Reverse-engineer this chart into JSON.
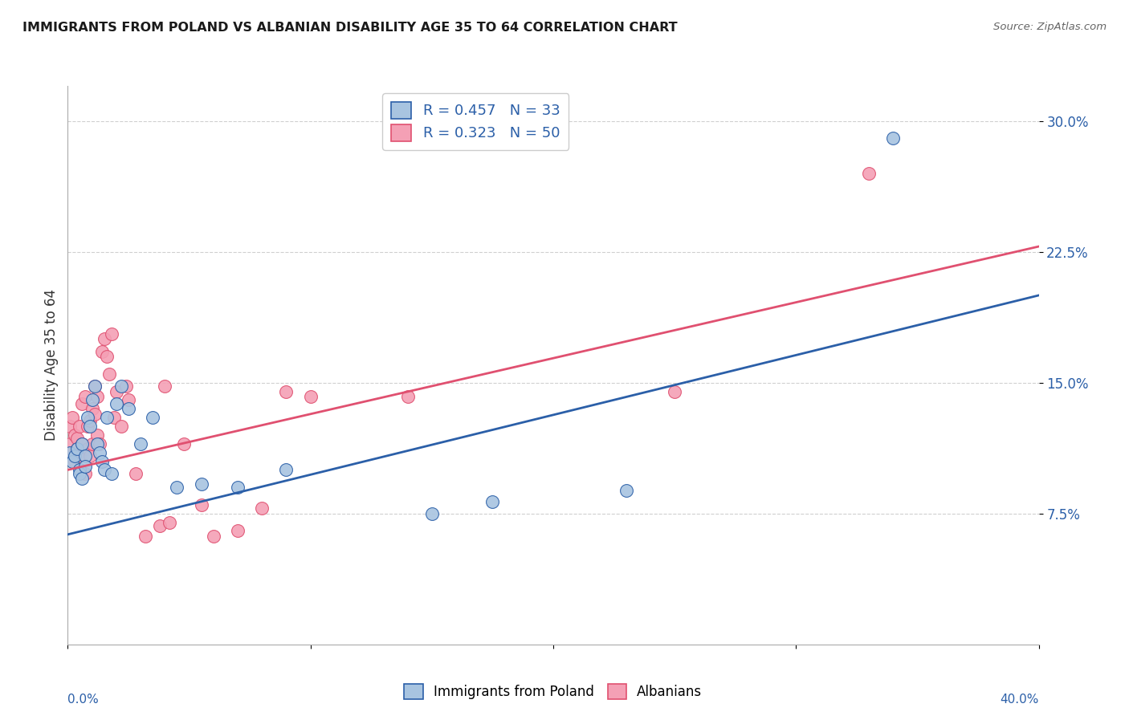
{
  "title": "IMMIGRANTS FROM POLAND VS ALBANIAN DISABILITY AGE 35 TO 64 CORRELATION CHART",
  "source": "Source: ZipAtlas.com",
  "ylabel": "Disability Age 35 to 64",
  "ytick_vals": [
    0.075,
    0.15,
    0.225,
    0.3
  ],
  "ytick_labels": [
    "7.5%",
    "15.0%",
    "22.5%",
    "30.0%"
  ],
  "xlim": [
    0.0,
    0.4
  ],
  "ylim": [
    0.0,
    0.32
  ],
  "poland_color": "#a8c4e0",
  "albanian_color": "#f4a0b5",
  "poland_line_color": "#2b5fa8",
  "albanian_line_color": "#e05070",
  "poland_R": 0.457,
  "poland_N": 33,
  "albanian_R": 0.323,
  "albanian_N": 50,
  "legend_label_poland": "Immigrants from Poland",
  "legend_label_albanian": "Albanians",
  "background_color": "#ffffff",
  "grid_color": "#d0d0d0",
  "marker_size": 130,
  "poland_x": [
    0.001,
    0.002,
    0.003,
    0.004,
    0.005,
    0.005,
    0.006,
    0.006,
    0.007,
    0.007,
    0.008,
    0.009,
    0.01,
    0.011,
    0.012,
    0.013,
    0.014,
    0.015,
    0.016,
    0.018,
    0.02,
    0.022,
    0.025,
    0.03,
    0.035,
    0.045,
    0.055,
    0.07,
    0.09,
    0.15,
    0.175,
    0.23,
    0.34
  ],
  "poland_y": [
    0.11,
    0.105,
    0.108,
    0.112,
    0.1,
    0.098,
    0.115,
    0.095,
    0.108,
    0.102,
    0.13,
    0.125,
    0.14,
    0.148,
    0.115,
    0.11,
    0.105,
    0.1,
    0.13,
    0.098,
    0.138,
    0.148,
    0.135,
    0.115,
    0.13,
    0.09,
    0.092,
    0.09,
    0.1,
    0.075,
    0.082,
    0.088,
    0.29
  ],
  "albanian_x": [
    0.001,
    0.001,
    0.002,
    0.002,
    0.003,
    0.003,
    0.004,
    0.004,
    0.005,
    0.005,
    0.006,
    0.006,
    0.007,
    0.007,
    0.008,
    0.008,
    0.009,
    0.009,
    0.01,
    0.01,
    0.011,
    0.011,
    0.012,
    0.012,
    0.013,
    0.014,
    0.015,
    0.016,
    0.017,
    0.018,
    0.019,
    0.02,
    0.022,
    0.024,
    0.025,
    0.028,
    0.032,
    0.038,
    0.04,
    0.042,
    0.048,
    0.055,
    0.06,
    0.07,
    0.08,
    0.09,
    0.1,
    0.14,
    0.25,
    0.33
  ],
  "albanian_y": [
    0.115,
    0.125,
    0.11,
    0.13,
    0.105,
    0.12,
    0.118,
    0.112,
    0.108,
    0.125,
    0.138,
    0.115,
    0.142,
    0.098,
    0.112,
    0.125,
    0.108,
    0.128,
    0.115,
    0.135,
    0.148,
    0.132,
    0.142,
    0.12,
    0.115,
    0.168,
    0.175,
    0.165,
    0.155,
    0.178,
    0.13,
    0.145,
    0.125,
    0.148,
    0.14,
    0.098,
    0.062,
    0.068,
    0.148,
    0.07,
    0.115,
    0.08,
    0.062,
    0.065,
    0.078,
    0.145,
    0.142,
    0.142,
    0.145,
    0.27
  ],
  "poland_line_start_y": 0.063,
  "poland_line_end_y": 0.2,
  "albanian_line_start_y": 0.1,
  "albanian_line_end_y": 0.228
}
